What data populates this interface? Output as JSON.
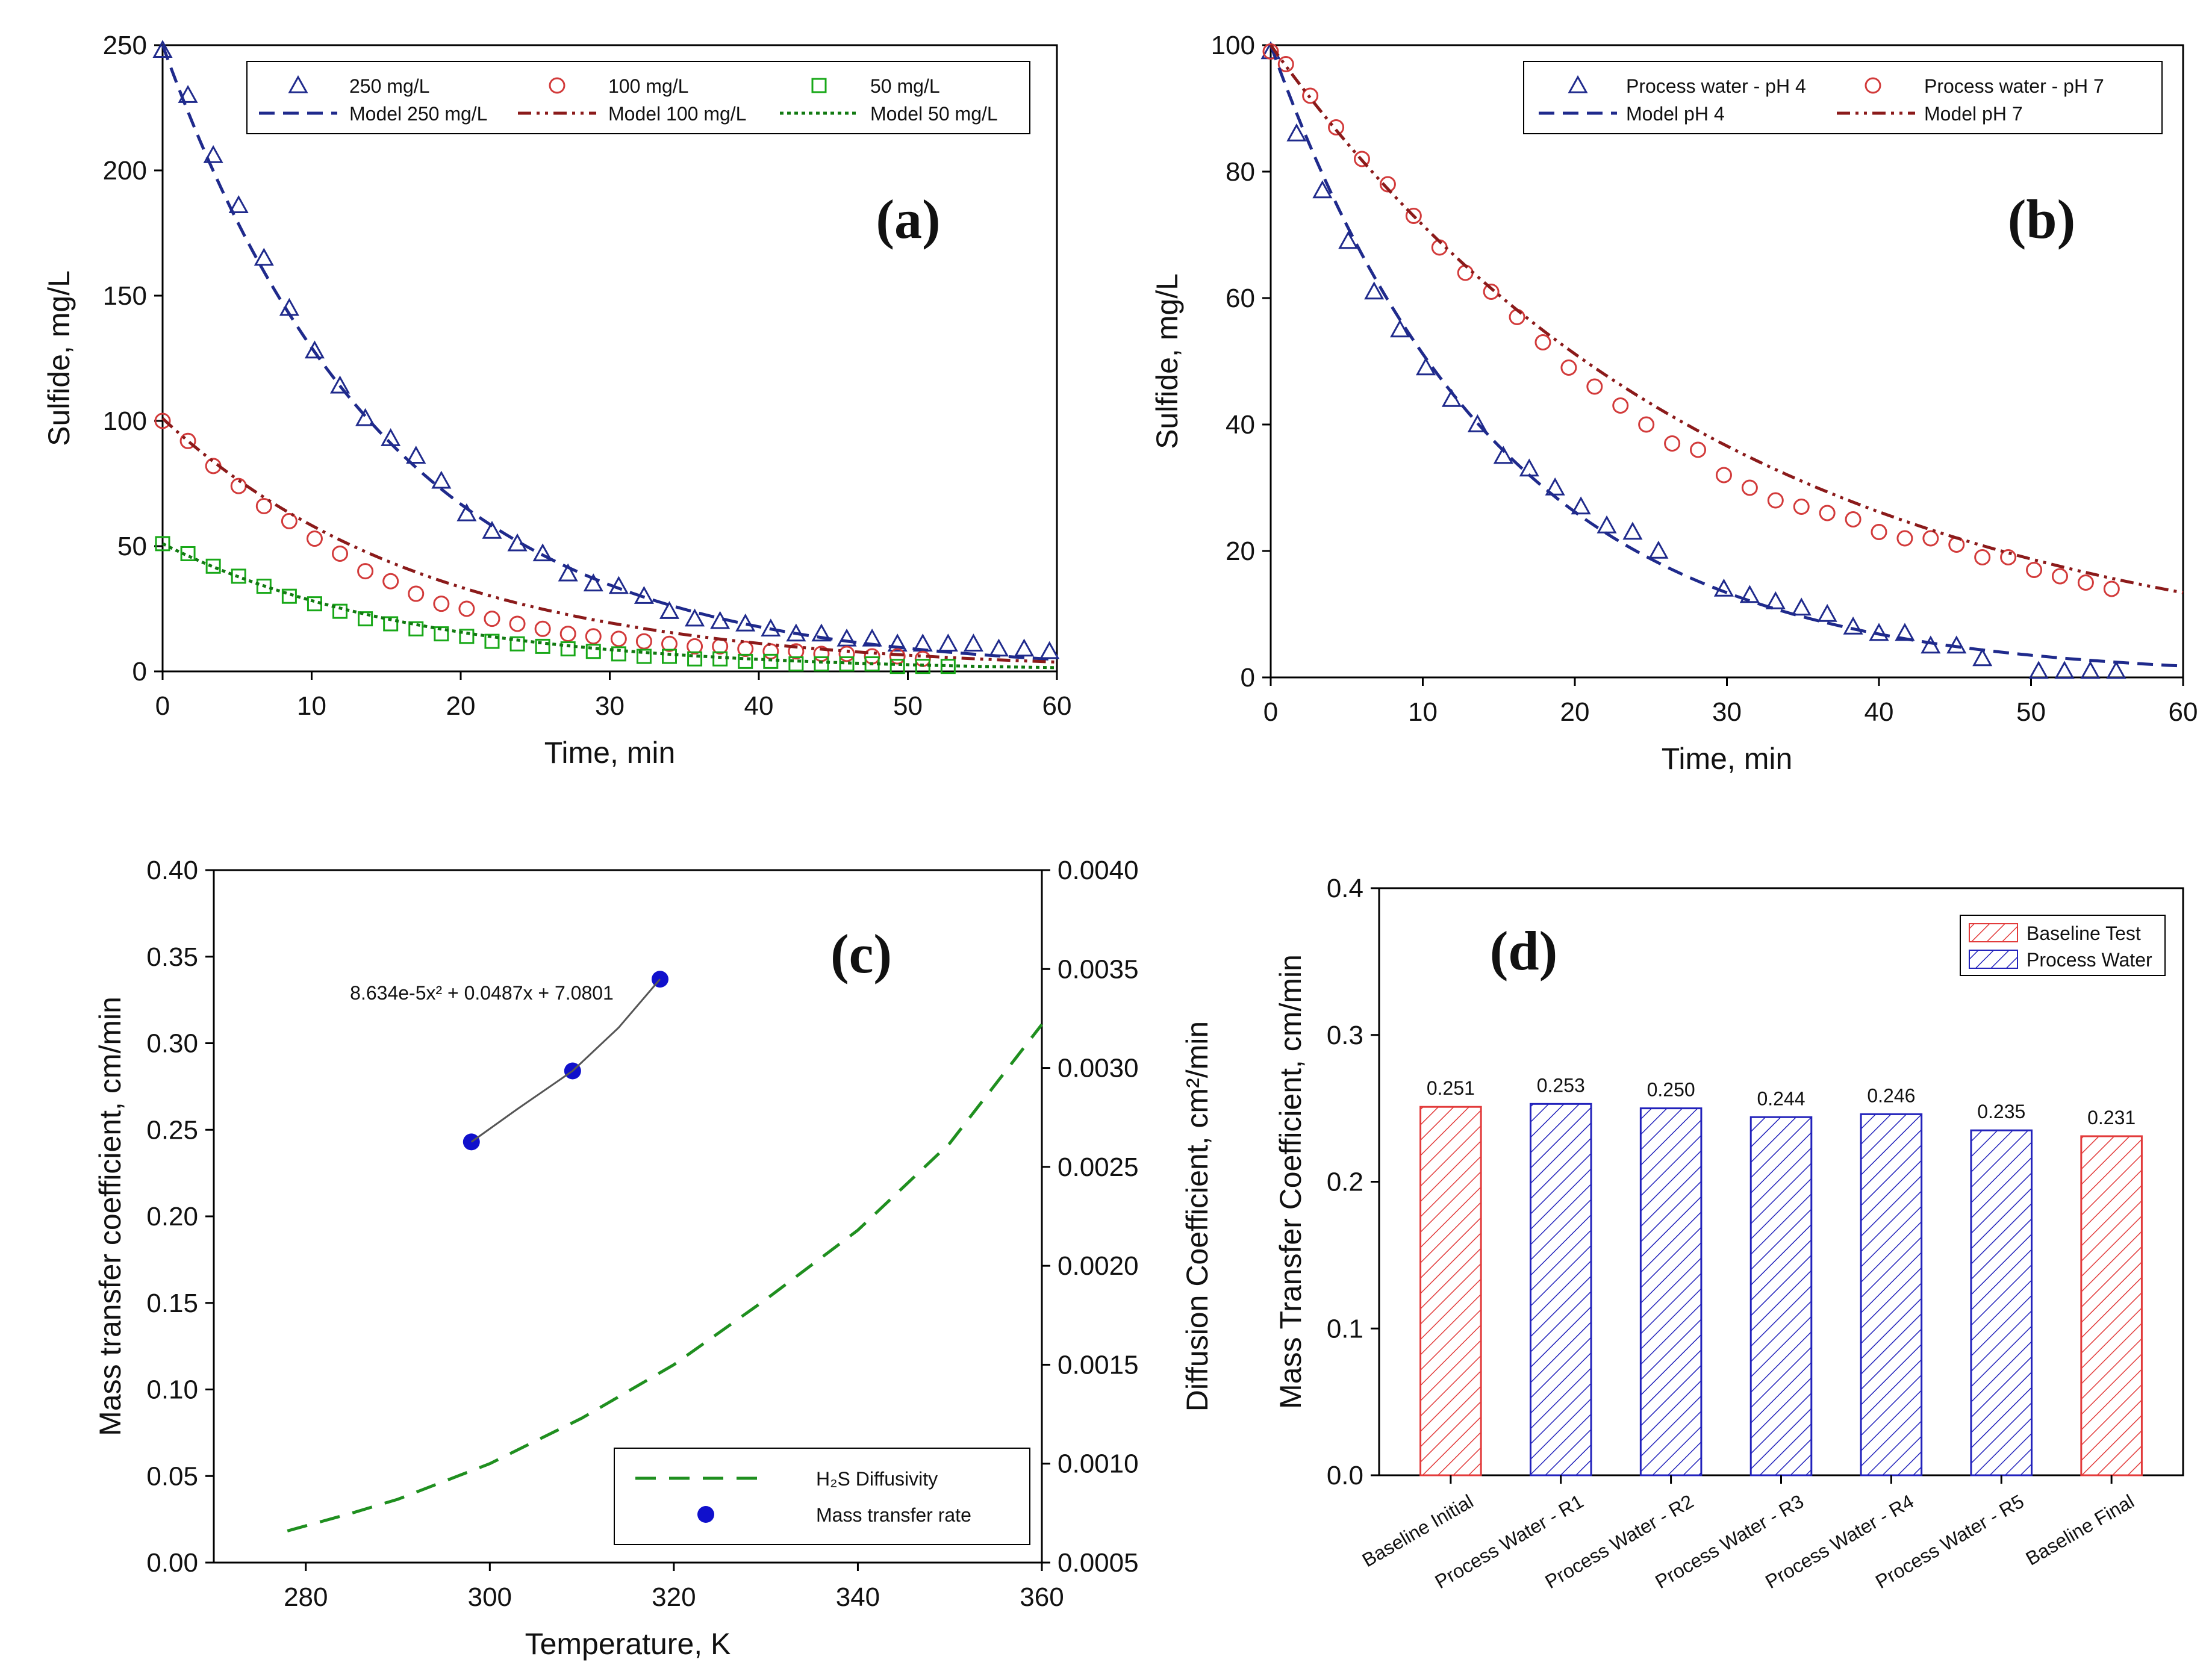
{
  "colors": {
    "navy": "#1f2a8c",
    "red": "#d23a3a",
    "darkred": "#8b1a1a",
    "green": "#18a818",
    "darkgreen": "#117a11",
    "blue": "#1010cc",
    "dashgreen": "#1f8f1f",
    "gray": "#555555"
  },
  "chart_data": [
    {
      "id": "a",
      "type": "scatter",
      "panel_label": "(a)",
      "xlabel": "Time, min",
      "ylabel": "Sulfide, mg/L",
      "xlim": [
        0,
        60
      ],
      "ylim": [
        0,
        250
      ],
      "xticks": [
        "0",
        "10",
        "20",
        "30",
        "40",
        "50",
        "60"
      ],
      "yticks": [
        "0",
        "50",
        "100",
        "150",
        "200",
        "250"
      ],
      "legend_position": "top",
      "series": [
        {
          "name": "250 mg/L",
          "kind": "points",
          "marker": "triangle",
          "color": "navy",
          "x": [
            0,
            1.7,
            3.4,
            5.1,
            6.8,
            8.5,
            10.2,
            11.9,
            13.6,
            15.3,
            17,
            18.7,
            20.4,
            22.1,
            23.8,
            25.5,
            27.2,
            28.9,
            30.6,
            32.3,
            34,
            35.7,
            37.4,
            39.1,
            40.8,
            42.5,
            44.2,
            45.9,
            47.6,
            49.3,
            51,
            52.7,
            54.4,
            56.1,
            57.8,
            59.5
          ],
          "y": [
            248,
            230,
            206,
            186,
            165,
            145,
            128,
            114,
            101,
            93,
            86,
            76,
            63,
            56,
            51,
            47,
            39,
            35,
            34,
            30,
            24,
            21,
            20,
            19,
            17,
            15,
            15,
            13,
            13,
            11,
            11,
            11,
            11,
            9,
            9,
            8
          ]
        },
        {
          "name": "Model 250 mg/L",
          "kind": "line",
          "dash": "dashed",
          "color": "navy",
          "model": {
            "c0": 250,
            "k": 0.066,
            "xmax": 60
          }
        },
        {
          "name": "100 mg/L",
          "kind": "points",
          "marker": "circle",
          "color": "red",
          "x": [
            0,
            1.7,
            3.4,
            5.1,
            6.8,
            8.5,
            10.2,
            11.9,
            13.6,
            15.3,
            17,
            18.7,
            20.4,
            22.1,
            23.8,
            25.5,
            27.2,
            28.9,
            30.6,
            32.3,
            34,
            35.7,
            37.4,
            39.1,
            40.8,
            42.5,
            44.2,
            45.9,
            47.6,
            49.3,
            51
          ],
          "y": [
            100,
            92,
            82,
            74,
            66,
            60,
            53,
            47,
            40,
            36,
            31,
            27,
            25,
            21,
            19,
            17,
            15,
            14,
            13,
            12,
            11,
            10,
            10,
            9,
            8,
            8,
            7,
            7,
            6,
            6,
            5
          ]
        },
        {
          "name": "Model 100 mg/L",
          "kind": "line",
          "dash": "dashdotdot",
          "color": "darkred",
          "model": {
            "c0": 101,
            "k": 0.055,
            "xmax": 60
          }
        },
        {
          "name": "50 mg/L",
          "kind": "points",
          "marker": "square",
          "color": "green",
          "x": [
            0,
            1.7,
            3.4,
            5.1,
            6.8,
            8.5,
            10.2,
            11.9,
            13.6,
            15.3,
            17,
            18.7,
            20.4,
            22.1,
            23.8,
            25.5,
            27.2,
            28.9,
            30.6,
            32.3,
            34,
            35.7,
            37.4,
            39.1,
            40.8,
            42.5,
            44.2,
            45.9,
            47.6,
            49.3,
            51,
            52.7
          ],
          "y": [
            51,
            47,
            42,
            38,
            34,
            30,
            27,
            24,
            21,
            19,
            17,
            15,
            14,
            12,
            11,
            10,
            9,
            8,
            7,
            6,
            6,
            5,
            5,
            4,
            4,
            3,
            3,
            3,
            3,
            2,
            2,
            2
          ]
        },
        {
          "name": "Model 50 mg/L",
          "kind": "line",
          "dash": "dotted",
          "color": "darkgreen",
          "model": {
            "c0": 51,
            "k": 0.059,
            "xmax": 60
          }
        }
      ]
    },
    {
      "id": "b",
      "type": "scatter",
      "panel_label": "(b)",
      "xlabel": "Time, min",
      "ylabel": "Sulfide, mg/L",
      "xlim": [
        0,
        60
      ],
      "ylim": [
        0,
        100
      ],
      "xticks": [
        "0",
        "10",
        "20",
        "30",
        "40",
        "50",
        "60"
      ],
      "yticks": [
        "0",
        "20",
        "40",
        "60",
        "80",
        "100"
      ],
      "legend_position": "top-right",
      "series": [
        {
          "name": "Process water - pH 4",
          "kind": "points",
          "marker": "triangle",
          "color": "navy",
          "x": [
            0,
            1.7,
            3.4,
            5.1,
            6.8,
            8.5,
            10.2,
            11.9,
            13.6,
            15.3,
            17,
            18.7,
            20.4,
            22.1,
            23.8,
            25.5,
            29.8,
            31.5,
            33.2,
            34.9,
            36.6,
            38.3,
            40,
            41.7,
            43.4,
            45.1,
            46.8,
            50.5,
            52.2,
            53.9,
            55.6
          ],
          "y": [
            99,
            86,
            77,
            69,
            61,
            55,
            49,
            44,
            40,
            35,
            33,
            30,
            27,
            24,
            23,
            20,
            14,
            13,
            12,
            11,
            10,
            8,
            7,
            7,
            5,
            5,
            3,
            1,
            1,
            1,
            1
          ]
        },
        {
          "name": "Process water - pH 7",
          "kind": "points",
          "marker": "circle",
          "color": "red",
          "x": [
            0,
            1,
            2.6,
            4.3,
            6,
            7.7,
            9.4,
            11.1,
            12.8,
            14.5,
            16.2,
            17.9,
            19.6,
            21.3,
            23,
            24.7,
            26.4,
            28.1,
            29.8,
            31.5,
            33.2,
            34.9,
            36.6,
            38.3,
            40,
            41.7,
            43.4,
            45.1,
            46.8,
            48.5,
            50.2,
            51.9,
            53.6,
            55.3
          ],
          "y": [
            99,
            97,
            92,
            87,
            82,
            78,
            73,
            68,
            64,
            61,
            57,
            53,
            49,
            46,
            43,
            40,
            37,
            36,
            32,
            30,
            28,
            27,
            26,
            25,
            23,
            22,
            22,
            21,
            19,
            19,
            17,
            16,
            15,
            14
          ]
        },
        {
          "name": "Model pH 4",
          "kind": "line",
          "dash": "dashed",
          "color": "navy",
          "model": {
            "c0": 100,
            "k": 0.067,
            "xmax": 60
          }
        },
        {
          "name": "Model pH 7",
          "kind": "line",
          "dash": "dashdotdot",
          "color": "darkred",
          "model": {
            "c0": 100,
            "k": 0.0335,
            "xmax": 60
          }
        }
      ]
    },
    {
      "id": "c",
      "type": "scatter",
      "panel_label": "(c)",
      "xlabel": "Temperature, K",
      "ylabel": "Mass transfer coefficient, cm/min",
      "ylabel2": "Diffusion Coefficient, cm²/min",
      "xlim": [
        270,
        360
      ],
      "ylim": [
        0,
        0.4
      ],
      "ylim2": [
        0.0005,
        0.004
      ],
      "xticks": [
        "280",
        "300",
        "320",
        "340",
        "360"
      ],
      "yticks": [
        "0.00",
        "0.05",
        "0.10",
        "0.15",
        "0.20",
        "0.25",
        "0.30",
        "0.35",
        "0.40"
      ],
      "yticks2": [
        "0.0005",
        "0.0010",
        "0.0015",
        "0.0020",
        "0.0025",
        "0.0030",
        "0.0035",
        "0.0040"
      ],
      "annotation": "8.634e-5x² + 0.0487x + 7.0801",
      "legend_position": "bottom-right",
      "series": [
        {
          "name": "H₂S Diffusivity",
          "kind": "line",
          "dash": "longdash",
          "color": "dashgreen",
          "axis": "right",
          "x": [
            278,
            285,
            290,
            300,
            310,
            320,
            330,
            340,
            350,
            360
          ],
          "y": [
            0.00066,
            0.00075,
            0.00082,
            0.001,
            0.00123,
            0.0015,
            0.00183,
            0.00218,
            0.00262,
            0.00322
          ]
        },
        {
          "name": "Mass transfer rate",
          "kind": "points",
          "marker": "dot",
          "color": "blue",
          "axis": "left",
          "x": [
            298,
            309,
            318.5
          ],
          "y": [
            0.243,
            0.284,
            0.337
          ]
        },
        {
          "name": "fit",
          "kind": "line",
          "dash": "solid",
          "color": "gray",
          "axis": "left",
          "x": [
            298,
            303,
            309,
            314,
            318.5
          ],
          "y": [
            0.243,
            0.262,
            0.284,
            0.309,
            0.337
          ]
        }
      ]
    },
    {
      "id": "d",
      "type": "bar",
      "panel_label": "(d)",
      "ylabel": "Mass Transfer Coefficient, cm/min",
      "ylim": [
        0,
        0.4
      ],
      "yticks": [
        "0.0",
        "0.1",
        "0.2",
        "0.3",
        "0.4"
      ],
      "categories": [
        "Baseline Initial",
        "Process Water - R1",
        "Process Water - R2",
        "Process Water - R3",
        "Process Water - R4",
        "Process Water - R5",
        "Baseline Final"
      ],
      "values": [
        0.251,
        0.253,
        0.25,
        0.244,
        0.246,
        0.235,
        0.231
      ],
      "value_labels": [
        "0.251",
        "0.253",
        "0.250",
        "0.244",
        "0.246",
        "0.235",
        "0.231"
      ],
      "groups": [
        "Baseline Test",
        "Process Water",
        "Process Water",
        "Process Water",
        "Process Water",
        "Process Water",
        "Baseline Test"
      ],
      "legend": [
        {
          "name": "Baseline Test",
          "color": "red"
        },
        {
          "name": "Process Water",
          "color": "blue"
        }
      ],
      "legend_position": "top-right"
    }
  ]
}
